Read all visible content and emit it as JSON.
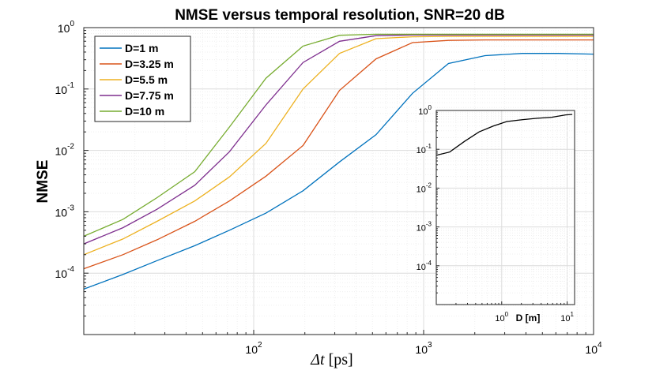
{
  "chart_data": {
    "type": "line",
    "title": "NMSE versus temporal resolution, SNR=20 dB",
    "xlabel_symbol": "Δt",
    "xlabel_unit": "[ps]",
    "ylabel": "NMSE",
    "xscale": "log",
    "yscale": "log",
    "xlim": [
      10,
      10000
    ],
    "ylim": [
      1e-05,
      1
    ],
    "grid": true,
    "legend_position": "top-left",
    "x_ticks": [
      {
        "base": "10",
        "exp": "2",
        "value": 100
      },
      {
        "base": "10",
        "exp": "3",
        "value": 1000
      },
      {
        "base": "10",
        "exp": "4",
        "value": 10000
      }
    ],
    "y_ticks": [
      {
        "base": "10",
        "exp": "0",
        "value": 1
      },
      {
        "base": "10",
        "exp": "-1",
        "value": 0.1
      },
      {
        "base": "10",
        "exp": "-2",
        "value": 0.01
      },
      {
        "base": "10",
        "exp": "-3",
        "value": 0.001
      },
      {
        "base": "10",
        "exp": "-4",
        "value": 0.0001
      }
    ],
    "x": [
      10,
      17,
      27,
      45,
      72,
      118,
      195,
      320,
      525,
      860,
      1400,
      2300,
      3800,
      6200,
      10000
    ],
    "series": [
      {
        "name": "D=1 m",
        "color": "#0072BD",
        "values": [
          5.5e-05,
          9.5e-05,
          0.00016,
          0.00028,
          0.0005,
          0.00095,
          0.0022,
          0.0065,
          0.018,
          0.085,
          0.26,
          0.35,
          0.38,
          0.38,
          0.37
        ]
      },
      {
        "name": "D=3.25 m",
        "color": "#D95319",
        "values": [
          0.000118,
          0.0002,
          0.00035,
          0.0007,
          0.0015,
          0.0038,
          0.012,
          0.095,
          0.31,
          0.57,
          0.62,
          0.63,
          0.63,
          0.63,
          0.63
        ]
      },
      {
        "name": "D=5.5 m",
        "color": "#EDB120",
        "values": [
          0.0002,
          0.00036,
          0.0007,
          0.0015,
          0.0037,
          0.013,
          0.1,
          0.38,
          0.66,
          0.71,
          0.72,
          0.72,
          0.72,
          0.72,
          0.72
        ]
      },
      {
        "name": "D=7.75 m",
        "color": "#7E2F8E",
        "values": [
          0.0003,
          0.00055,
          0.0011,
          0.0027,
          0.0095,
          0.055,
          0.27,
          0.6,
          0.74,
          0.76,
          0.76,
          0.76,
          0.76,
          0.76,
          0.76
        ]
      },
      {
        "name": "D=10 m",
        "color": "#77AC30",
        "values": [
          0.0004,
          0.00075,
          0.0017,
          0.0045,
          0.024,
          0.15,
          0.5,
          0.75,
          0.78,
          0.78,
          0.78,
          0.78,
          0.78,
          0.78,
          0.78
        ]
      }
    ],
    "inset": {
      "type": "line",
      "xlabel": "D [m]",
      "xscale": "log",
      "yscale": "log",
      "xlim": [
        0.1,
        13
      ],
      "ylim": [
        1e-05,
        1
      ],
      "color": "#000000",
      "x_ticks": [
        {
          "base": "10",
          "exp": "0",
          "value": 1
        },
        {
          "base": "10",
          "exp": "1",
          "value": 10
        }
      ],
      "y_ticks": [
        {
          "base": "10",
          "exp": "0",
          "value": 1
        },
        {
          "base": "10",
          "exp": "-1",
          "value": 0.1
        },
        {
          "base": "10",
          "exp": "-2",
          "value": 0.01
        },
        {
          "base": "10",
          "exp": "-3",
          "value": 0.001
        },
        {
          "base": "10",
          "exp": "-4",
          "value": 0.0001
        }
      ],
      "x": [
        0.1,
        0.16,
        0.27,
        0.45,
        0.75,
        1.2,
        2.1,
        3.5,
        5.8,
        9.5,
        12
      ],
      "values": [
        0.07,
        0.085,
        0.16,
        0.28,
        0.4,
        0.52,
        0.58,
        0.63,
        0.67,
        0.77,
        0.79
      ]
    }
  }
}
